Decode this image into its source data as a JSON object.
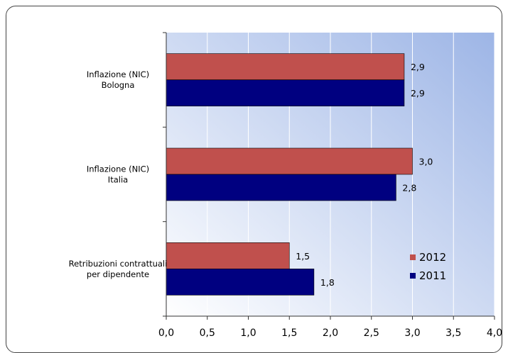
{
  "chart_data": {
    "type": "bar",
    "orientation": "horizontal",
    "categories": [
      [
        "Inflazione (NIC)",
        "Bologna"
      ],
      [
        "Inflazione (NIC)",
        "Italia"
      ],
      [
        "Retribuzioni contrattuali",
        "per dipendente"
      ]
    ],
    "series": [
      {
        "name": "2012",
        "values": [
          2.9,
          3.0,
          1.5
        ],
        "value_labels": [
          "2,9",
          "3,0",
          "1,5"
        ],
        "color": "#C0504D"
      },
      {
        "name": "2011",
        "values": [
          2.9,
          2.8,
          1.8
        ],
        "value_labels": [
          "2,9",
          "2,8",
          "1,8"
        ],
        "color": "#000080"
      }
    ],
    "xlim": [
      0,
      4.0
    ],
    "x_ticks": [
      0,
      0.5,
      1.0,
      1.5,
      2.0,
      2.5,
      3.0,
      3.5,
      4.0
    ],
    "x_tick_labels": [
      "0,0",
      "0,5",
      "1,0",
      "1,5",
      "2,0",
      "2,5",
      "3,0",
      "3,5",
      "4,0"
    ],
    "grid": "vertical",
    "legend_position": "inside-bottom-right",
    "legend_order": [
      "2012",
      "2011"
    ],
    "plot_background": "gradient #9DB5E6 to #FFFFFF",
    "title": "",
    "xlabel": "",
    "ylabel": ""
  }
}
